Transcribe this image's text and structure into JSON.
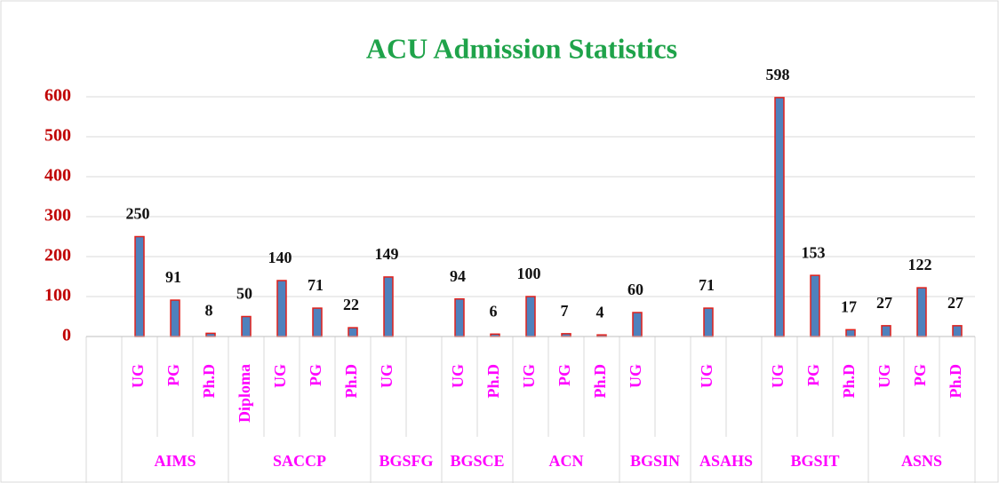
{
  "chart_data": {
    "type": "bar",
    "title": "ACU Admission Statistics",
    "groups": [
      {
        "label": null,
        "categories": [
          null
        ],
        "values": [
          null
        ]
      },
      {
        "label": "AIMS",
        "categories": [
          "UG",
          "PG",
          "Ph.D"
        ],
        "values": [
          250,
          91,
          8
        ]
      },
      {
        "label": "SACCP",
        "categories": [
          "Diploma",
          "UG",
          "PG",
          "Ph.D"
        ],
        "values": [
          50,
          140,
          71,
          22
        ]
      },
      {
        "label": "BGSFG",
        "categories": [
          "UG",
          null
        ],
        "values": [
          149,
          null
        ]
      },
      {
        "label": "BGSCE",
        "categories": [
          "UG",
          "Ph.D"
        ],
        "values": [
          94,
          6
        ]
      },
      {
        "label": "ACN",
        "categories": [
          "UG",
          "PG",
          "Ph.D"
        ],
        "values": [
          100,
          7,
          4
        ]
      },
      {
        "label": "BGSIN",
        "categories": [
          "UG",
          null
        ],
        "values": [
          60,
          null
        ]
      },
      {
        "label": "ASAHS",
        "categories": [
          "UG",
          null
        ],
        "values": [
          71,
          null
        ]
      },
      {
        "label": "BGSIT",
        "categories": [
          "UG",
          "PG",
          "Ph.D"
        ],
        "values": [
          598,
          153,
          17
        ]
      },
      {
        "label": "ASNS",
        "categories": [
          "UG",
          "PG",
          "Ph.D"
        ],
        "values": [
          27,
          122,
          27
        ]
      }
    ],
    "color": "#4f81bd",
    "edge_color": "#e0201b",
    "ylim": [
      0,
      600
    ],
    "yticks": [
      0,
      100,
      200,
      300,
      400,
      500,
      600
    ],
    "grid": true
  }
}
